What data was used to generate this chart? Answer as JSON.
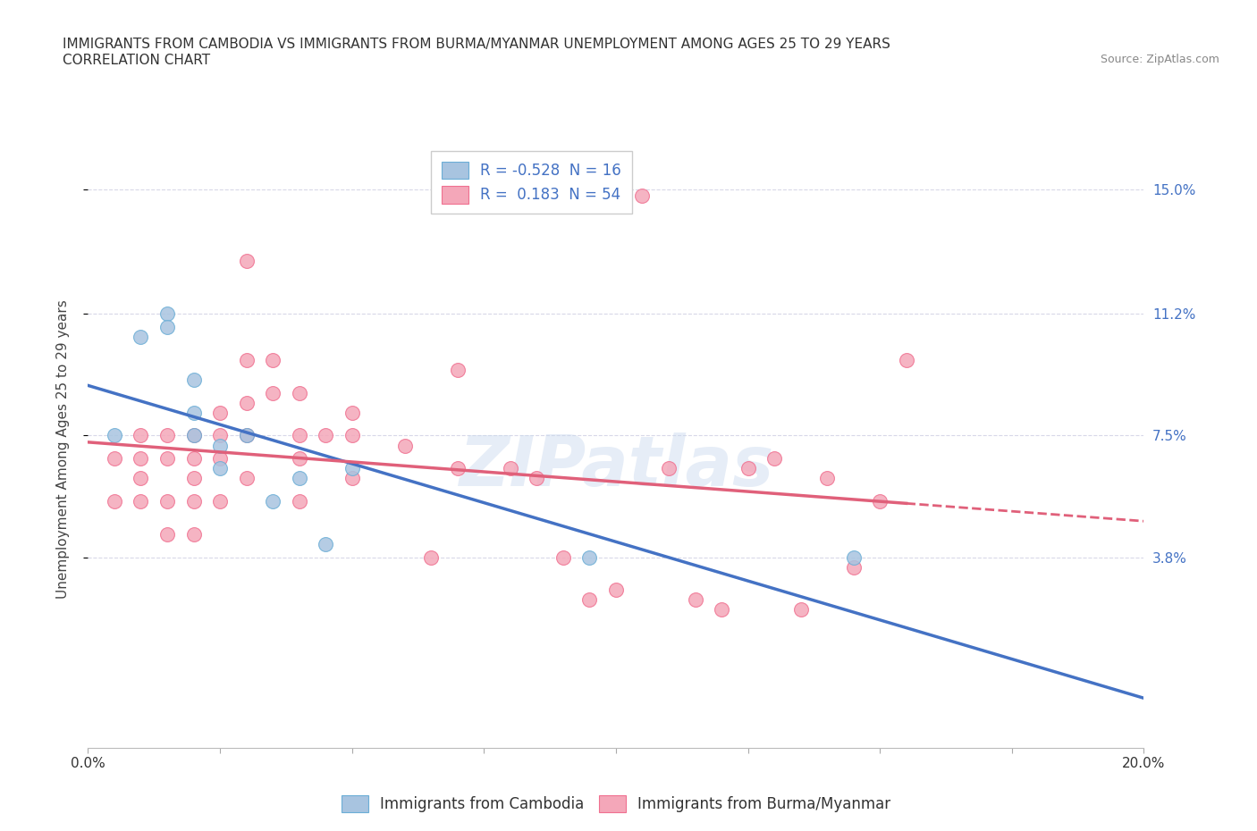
{
  "title_line1": "IMMIGRANTS FROM CAMBODIA VS IMMIGRANTS FROM BURMA/MYANMAR UNEMPLOYMENT AMONG AGES 25 TO 29 YEARS",
  "title_line2": "CORRELATION CHART",
  "source_text": "Source: ZipAtlas.com",
  "ylabel": "Unemployment Among Ages 25 to 29 years",
  "watermark": "ZIPatlas",
  "xmin": 0.0,
  "xmax": 0.2,
  "ymin": -0.02,
  "ymax": 0.162,
  "yticks": [
    0.038,
    0.075,
    0.112,
    0.15
  ],
  "ytick_labels": [
    "3.8%",
    "7.5%",
    "11.2%",
    "15.0%"
  ],
  "xticks": [
    0.0,
    0.025,
    0.05,
    0.075,
    0.1,
    0.125,
    0.15,
    0.175,
    0.2
  ],
  "xtick_labels_show": [
    "0.0%",
    "",
    "",
    "",
    "",
    "",
    "",
    "",
    "20.0%"
  ],
  "cambodia_color": "#a8c4e0",
  "burma_color": "#f4a7b9",
  "cambodia_edge": "#6baed6",
  "burma_edge": "#f07090",
  "trend_cambodia_color": "#4472c4",
  "trend_burma_color": "#e0607a",
  "legend_cambodia": "R = -0.528  N = 16",
  "legend_burma": "R =  0.183  N = 54",
  "axis_color": "#4472c4",
  "grid_color": "#d8d8e8",
  "background_color": "#ffffff",
  "title_fontsize": 11,
  "label_fontsize": 11,
  "tick_fontsize": 11,
  "legend_fontsize": 12,
  "cambodia_x": [
    0.005,
    0.01,
    0.015,
    0.015,
    0.02,
    0.02,
    0.02,
    0.025,
    0.025,
    0.03,
    0.035,
    0.04,
    0.045,
    0.05,
    0.095,
    0.145
  ],
  "cambodia_y": [
    0.075,
    0.105,
    0.112,
    0.108,
    0.092,
    0.082,
    0.075,
    0.072,
    0.065,
    0.075,
    0.055,
    0.062,
    0.042,
    0.065,
    0.038,
    0.038
  ],
  "burma_x": [
    0.005,
    0.005,
    0.01,
    0.01,
    0.01,
    0.01,
    0.015,
    0.015,
    0.015,
    0.015,
    0.02,
    0.02,
    0.02,
    0.02,
    0.02,
    0.025,
    0.025,
    0.025,
    0.025,
    0.03,
    0.03,
    0.03,
    0.03,
    0.03,
    0.035,
    0.035,
    0.04,
    0.04,
    0.04,
    0.04,
    0.045,
    0.05,
    0.05,
    0.05,
    0.06,
    0.065,
    0.07,
    0.07,
    0.08,
    0.085,
    0.09,
    0.095,
    0.1,
    0.105,
    0.11,
    0.115,
    0.12,
    0.125,
    0.13,
    0.135,
    0.14,
    0.145,
    0.15,
    0.155
  ],
  "burma_y": [
    0.068,
    0.055,
    0.075,
    0.068,
    0.062,
    0.055,
    0.075,
    0.068,
    0.055,
    0.045,
    0.075,
    0.068,
    0.062,
    0.055,
    0.045,
    0.082,
    0.075,
    0.068,
    0.055,
    0.128,
    0.098,
    0.085,
    0.075,
    0.062,
    0.098,
    0.088,
    0.088,
    0.075,
    0.068,
    0.055,
    0.075,
    0.082,
    0.075,
    0.062,
    0.072,
    0.038,
    0.095,
    0.065,
    0.065,
    0.062,
    0.038,
    0.025,
    0.028,
    0.148,
    0.065,
    0.025,
    0.022,
    0.065,
    0.068,
    0.022,
    0.062,
    0.035,
    0.055,
    0.098
  ]
}
